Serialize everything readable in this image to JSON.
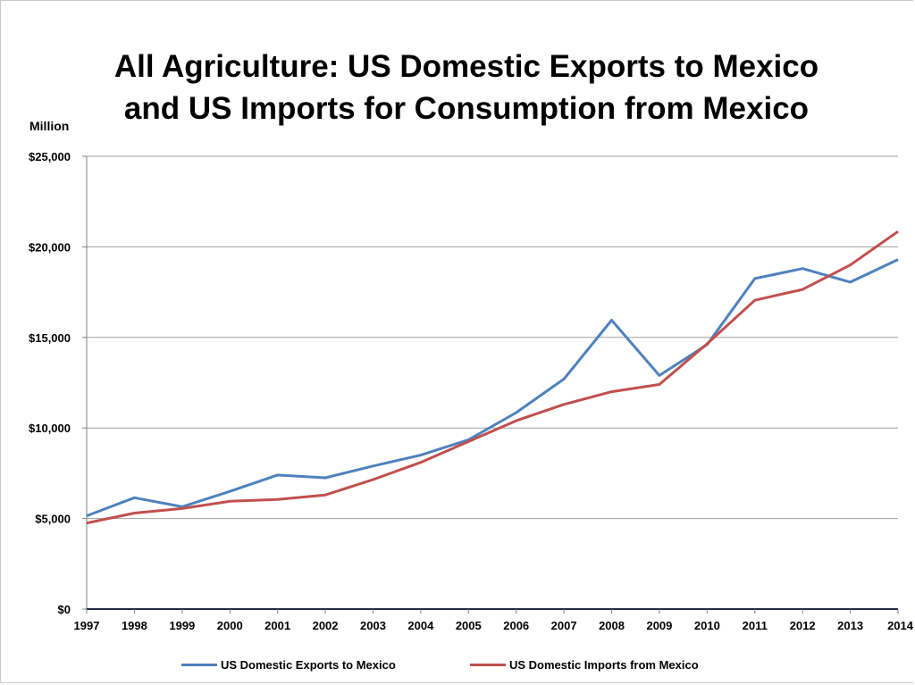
{
  "chart_data": {
    "type": "line",
    "title_line1": "All Agriculture: US Domestic Exports to Mexico",
    "title_line2": "and US Imports for Consumption from Mexico",
    "unit_label": "Million",
    "x": [
      "1997",
      "1998",
      "1999",
      "2000",
      "2001",
      "2002",
      "2003",
      "2004",
      "2005",
      "2006",
      "2007",
      "2008",
      "2009",
      "2010",
      "2011",
      "2012",
      "2013",
      "2014"
    ],
    "y_ticks": [
      "$0",
      "$5,000",
      "$10,000",
      "$15,000",
      "$20,000",
      "$25,000"
    ],
    "ylim": [
      0,
      25000
    ],
    "grid": true,
    "legend_position": "bottom",
    "series": [
      {
        "name": "US Domestic Exports to Mexico",
        "color": "#4f81bd",
        "values": [
          5150,
          6150,
          5650,
          6500,
          7400,
          7250,
          7900,
          8500,
          9350,
          10850,
          12700,
          15950,
          12900,
          14600,
          18250,
          18800,
          18050,
          19300
        ]
      },
      {
        "name": "US Domestic Imports from Mexico",
        "color": "#c0504d",
        "values": [
          4750,
          5300,
          5550,
          5950,
          6050,
          6300,
          7150,
          8100,
          9250,
          10400,
          11300,
          12000,
          12400,
          14650,
          17050,
          17650,
          19000,
          20850
        ]
      }
    ]
  }
}
